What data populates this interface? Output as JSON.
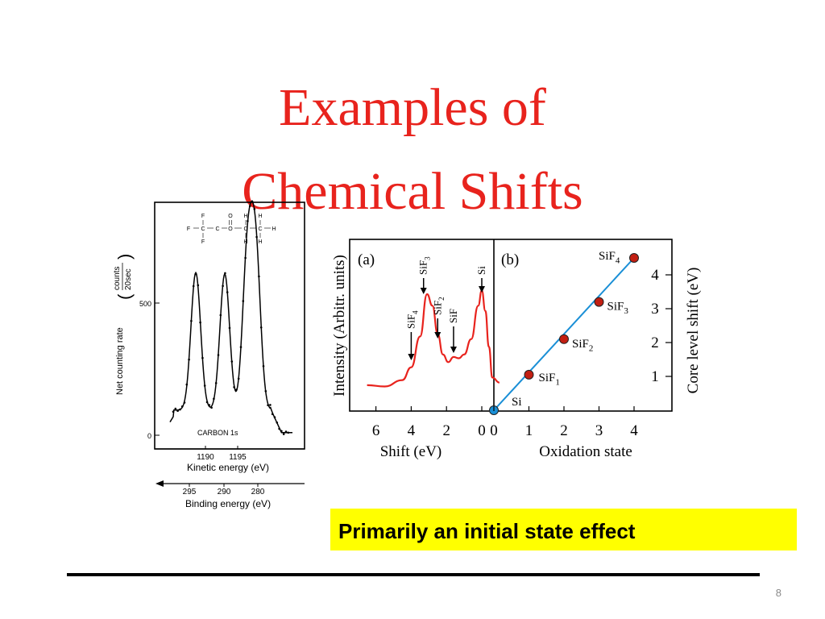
{
  "slide": {
    "title_line1": "Examples of",
    "title_line2": "Chemical Shifts",
    "callout": "Primarily an initial state effect",
    "page_number": "8"
  },
  "colors": {
    "title": "#e8231d",
    "spectrum_line": "#e8231d",
    "fit_line": "#1a8fd6",
    "point_fill": "#c21f12",
    "origin_point_fill": "#1a8fd6",
    "callout_bg": "#ffff00"
  },
  "chart_data": [
    {
      "type": "line",
      "panel": "carbon-1s-spectrum",
      "annotation": "CARBON 1s",
      "molecule_labels": [
        "F",
        "O",
        "H",
        "H",
        "F",
        "C",
        "C",
        "O",
        "C",
        "C",
        "H",
        "F",
        "H",
        "H"
      ],
      "ylabel": "Net counting rate",
      "ylabel_unit_numerator": "counts",
      "ylabel_unit_denominator": "20sec",
      "y_ticks": [
        "500",
        "0"
      ],
      "xlabel_top": "Kinetic energy (eV)",
      "x_ticks_top": [
        "1190",
        "1195"
      ],
      "xlabel_bottom": "Binding energy (eV)",
      "x_ticks_bottom": [
        "295",
        "290",
        "280"
      ],
      "peaks": [
        {
          "kinetic_energy": 1188.5,
          "counts": 615
        },
        {
          "kinetic_energy": 1193.0,
          "counts": 610
        },
        {
          "kinetic_energy": 1196.5,
          "counts": 660
        },
        {
          "kinetic_energy": 1197.8,
          "counts": 680
        }
      ]
    },
    {
      "type": "line",
      "panel": "a",
      "panel_label": "(a)",
      "xlabel": "Shift (eV)",
      "ylabel": "Intensity (Arbitr. units)",
      "x_ticks": [
        "6",
        "4",
        "2",
        "0"
      ],
      "xlim": [
        7,
        -1
      ],
      "x": [
        6.5,
        5.5,
        4.5,
        4.0,
        3.5,
        3.1,
        2.8,
        2.5,
        2.2,
        1.9,
        1.6,
        1.3,
        1.0,
        0.6,
        0.2,
        0.0,
        -0.2,
        -0.4,
        -0.6,
        -1.0
      ],
      "y": [
        0.12,
        0.11,
        0.16,
        0.26,
        0.5,
        0.83,
        0.74,
        0.52,
        0.36,
        0.3,
        0.34,
        0.33,
        0.36,
        0.48,
        0.74,
        0.86,
        0.7,
        0.42,
        0.18,
        0.14
      ],
      "peak_labels": [
        {
          "base": "SiF",
          "sub": "4",
          "x": 4.0
        },
        {
          "base": "SiF",
          "sub": "3",
          "x": 3.3
        },
        {
          "base": "SiF",
          "sub": "2",
          "x": 2.5
        },
        {
          "base": "SiF",
          "sub": "",
          "x": 1.6
        },
        {
          "base": "Si",
          "sub": "",
          "x": 0.0
        }
      ]
    },
    {
      "type": "scatter",
      "panel": "b",
      "panel_label": "(b)",
      "xlabel": "Oxidation state",
      "ylabel": "Core level shift (eV)",
      "x_ticks": [
        "0",
        "1",
        "2",
        "3",
        "4"
      ],
      "y_ticks": [
        "1",
        "2",
        "3",
        "4"
      ],
      "xlim": [
        0,
        5
      ],
      "ylim": [
        0,
        5
      ],
      "x": [
        0,
        1,
        2,
        3,
        4
      ],
      "y": [
        0.0,
        1.05,
        2.1,
        3.2,
        4.5
      ],
      "point_labels": [
        {
          "base": "Si",
          "sub": ""
        },
        {
          "base": "SiF",
          "sub": "1"
        },
        {
          "base": "SiF",
          "sub": "2"
        },
        {
          "base": "SiF",
          "sub": "3"
        },
        {
          "base": "SiF",
          "sub": "4"
        }
      ]
    }
  ]
}
